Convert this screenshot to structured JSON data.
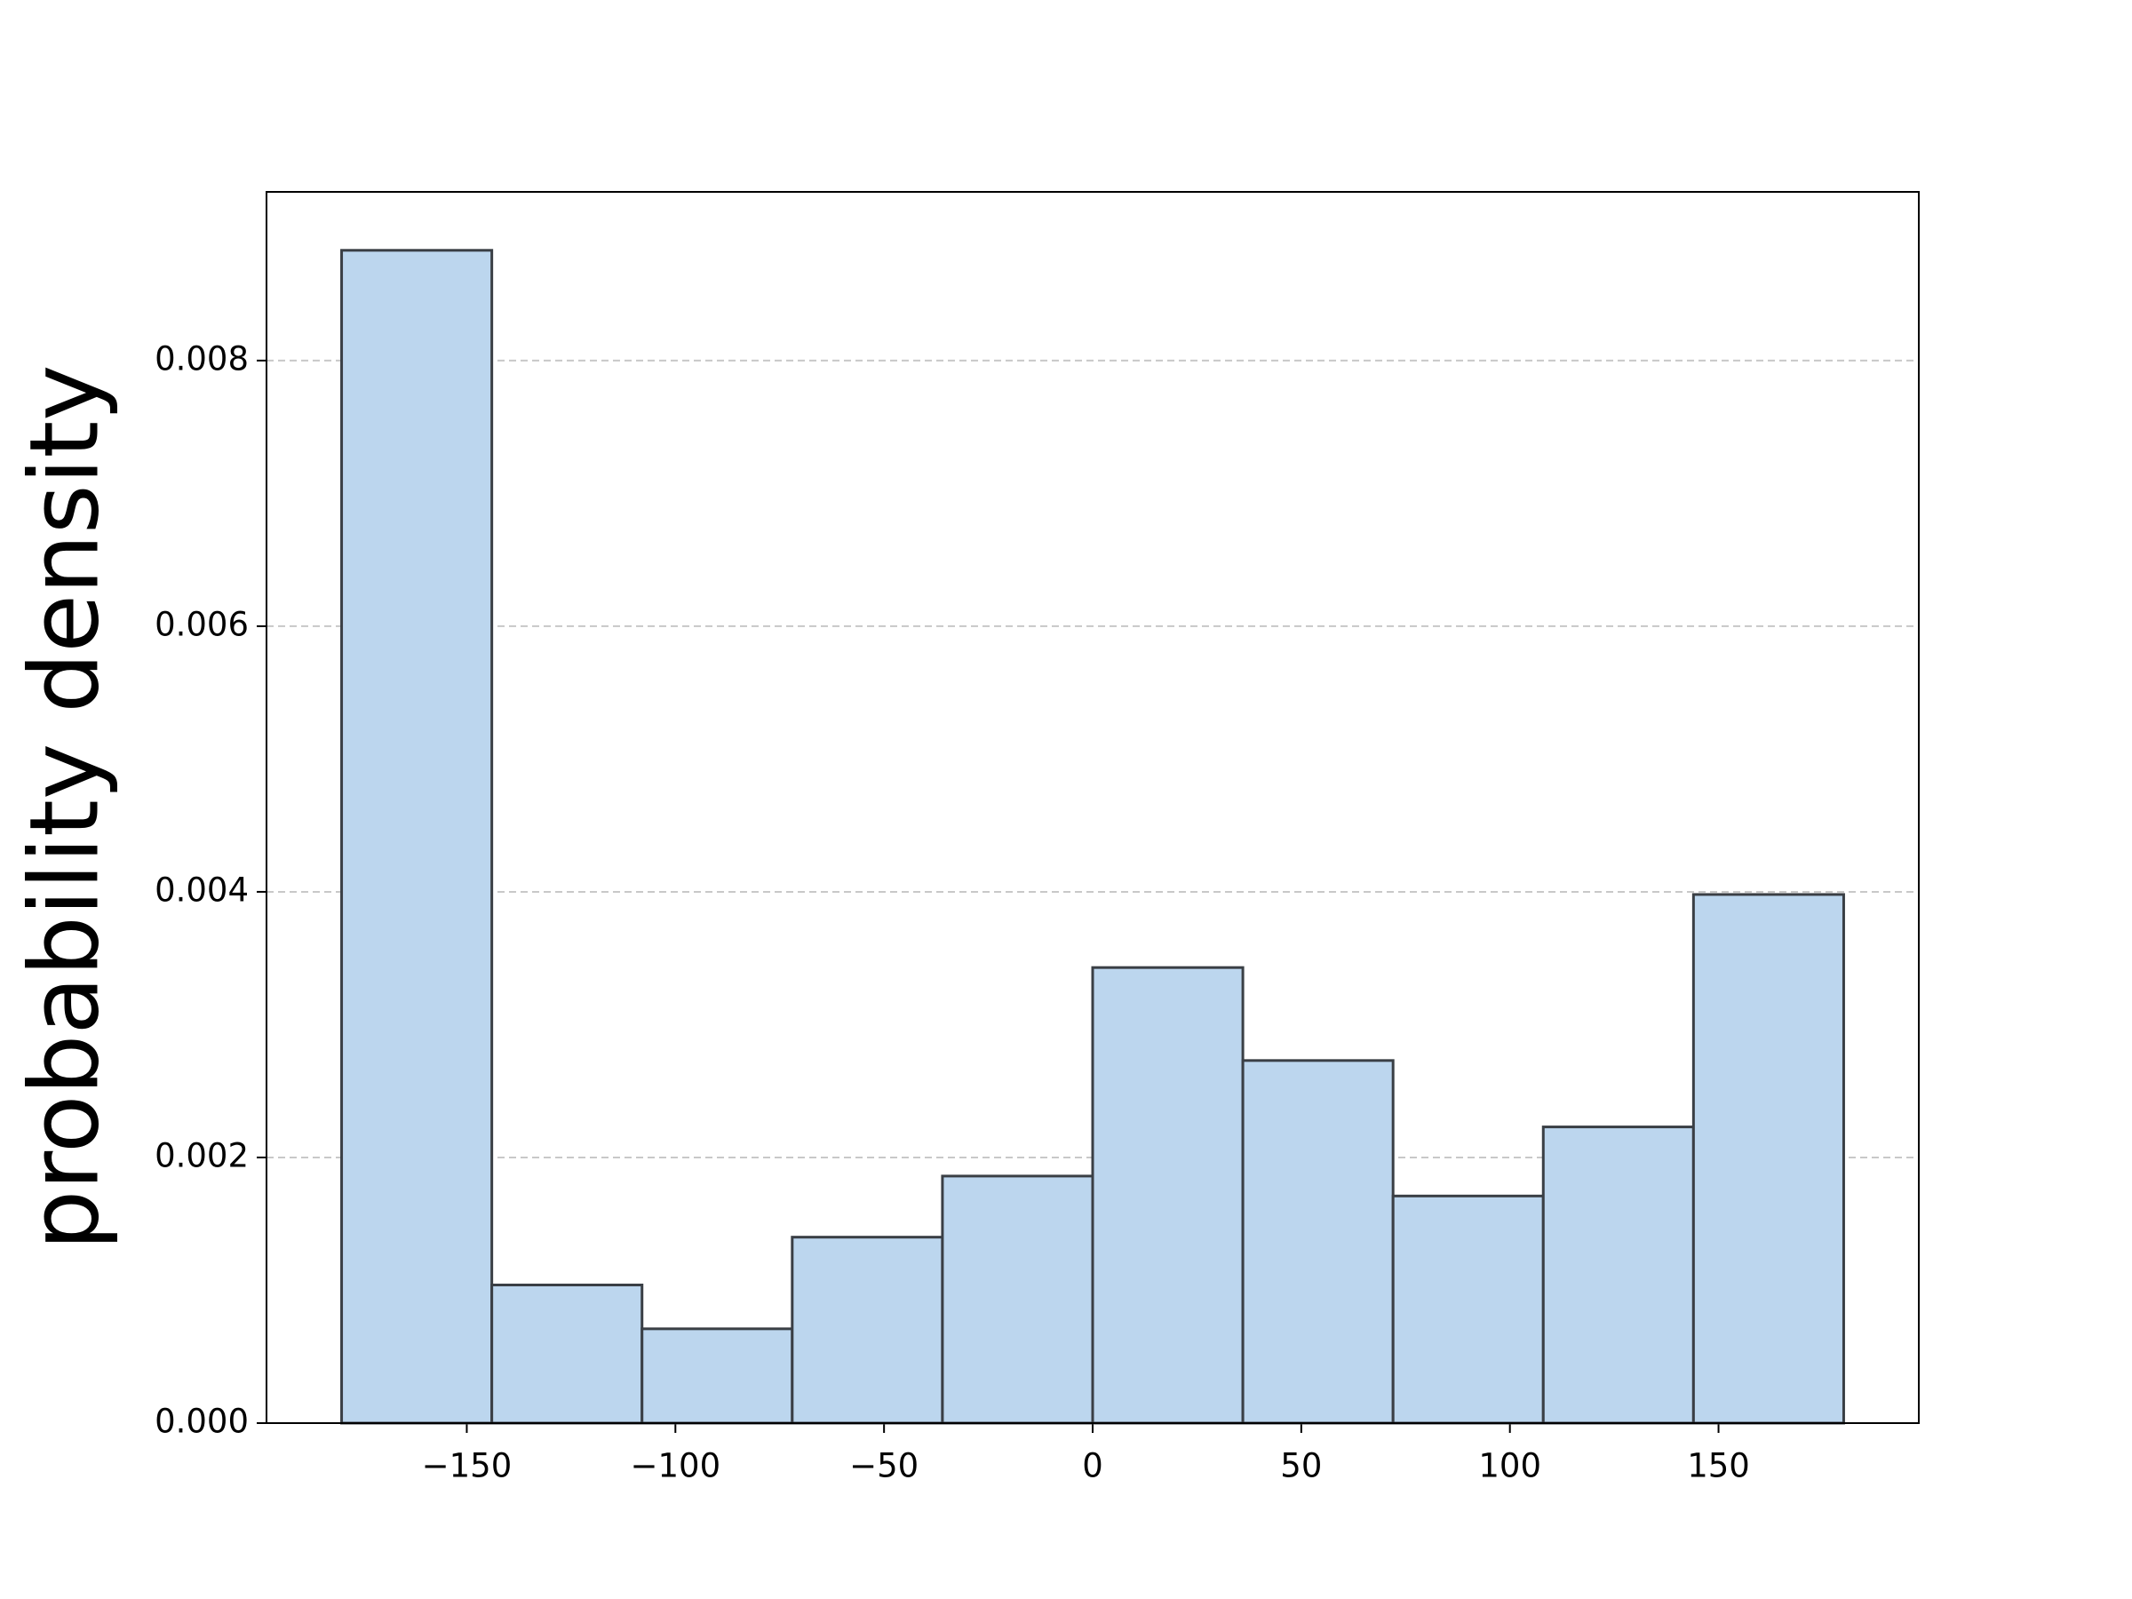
{
  "chart_data": {
    "type": "histogram",
    "ylabel": "probability density",
    "bins": [
      -180,
      -144,
      -108,
      -72,
      -36,
      0,
      36,
      72,
      108,
      144,
      180
    ],
    "values": [
      0.00883,
      0.00104,
      0.00071,
      0.0014,
      0.00186,
      0.00343,
      0.00273,
      0.00171,
      0.00223,
      0.00398
    ],
    "color": "#bcd6ee",
    "edgecolor": "#3a3f45",
    "xlim": [
      -198,
      198
    ],
    "ylim": [
      0,
      0.00927
    ],
    "xticks": [
      {
        "value": -150,
        "label": "−150"
      },
      {
        "value": -100,
        "label": "−100"
      },
      {
        "value": -50,
        "label": "−50"
      },
      0,
      50,
      100,
      150
    ],
    "yticks": [
      {
        "value": 0,
        "label": "0.000"
      },
      {
        "value": 0.002,
        "label": "0.002"
      },
      {
        "value": 0.004,
        "label": "0.004"
      },
      {
        "value": 0.006,
        "label": "0.006"
      },
      {
        "value": 0.008,
        "label": "0.008"
      }
    ],
    "grid": true
  }
}
